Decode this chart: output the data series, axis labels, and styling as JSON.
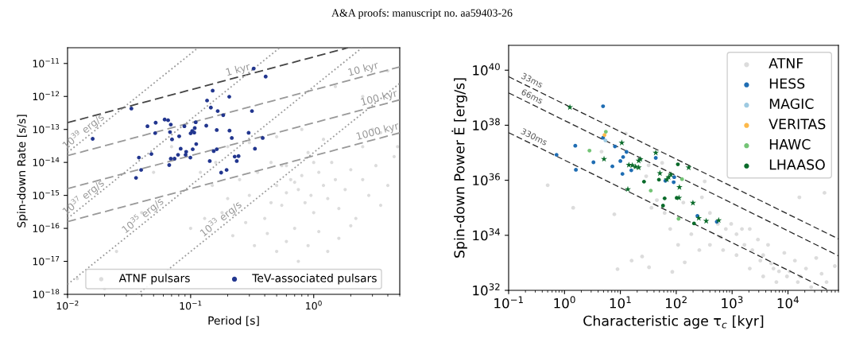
{
  "chart_data": [
    {
      "type": "scatter",
      "xlabel": "Period [s]",
      "ylabel": "Spin-down Rate [s/s]",
      "log": "xy",
      "legend": "bottom",
      "xlim": [
        0.01,
        5
      ],
      "ylim": [
        1e-18,
        3e-11
      ],
      "xticks": [
        {
          "value": 0.01,
          "label": "10$^{−2}$"
        },
        {
          "value": 0.1,
          "label": "10$^{−1}$"
        },
        {
          "value": 1,
          "label": "10$^{0}$"
        }
      ],
      "yticks": [
        {
          "value": 1e-18,
          "label": "10$^{−18}$"
        },
        {
          "value": 1e-17,
          "label": "10$^{−17}$"
        },
        {
          "value": 1e-16,
          "label": "10$^{−16}$"
        },
        {
          "value": 1e-15,
          "label": "10$^{−15}$"
        },
        {
          "value": 1e-14,
          "label": "10$^{−14}$"
        },
        {
          "value": 1e-13,
          "label": "10$^{−13}$"
        },
        {
          "value": 1e-12,
          "label": "10$^{−12}$"
        },
        {
          "value": 1e-11,
          "label": "10$^{−11}$"
        }
      ],
      "annotations": [
        "A&A proofs: manuscript no. aa59403-26",
        {
          "text": "1 kyr",
          "x": 0.25,
          "y": 4e-12
        },
        {
          "text": "10 kyr",
          "x": 2.6,
          "y": 4.2e-12
        },
        {
          "text": "100 kyr",
          "x": 3.5,
          "y": 5.6e-13
        },
        {
          "text": "1000 kyr",
          "x": 3.4,
          "y": 5.4e-14
        },
        {
          "text": "10$^{39}$ erg/s",
          "x": 0.0145,
          "y": 6.1e-14
        },
        {
          "text": "10$^{37}$ erg/s",
          "x": 0.0145,
          "y": 6.1e-16
        },
        {
          "text": "10$^{35}$ erg/s",
          "x": 0.044,
          "y": 1.7e-16
        },
        {
          "text": "10$^{33}$ erg/s",
          "x": 0.19,
          "y": 1.35e-16
        }
      ],
      "series": [
        {
          "type": "line",
          "color": "#444444",
          "line_style": "dashed",
          "x": [
            0.01,
            1.9
          ],
          "values": [
            1.6e-13,
            3e-11
          ]
        },
        {
          "type": "line",
          "color": "#999999",
          "line_style": "dashed",
          "x": [
            0.01,
            5
          ],
          "values": [
            1.6e-14,
            7.9e-12
          ]
        },
        {
          "type": "line",
          "color": "#999999",
          "line_style": "dashed",
          "x": [
            0.01,
            5
          ],
          "values": [
            1.6e-15,
            7.9e-13
          ]
        },
        {
          "type": "line",
          "color": "#999999",
          "line_style": "dashed",
          "x": [
            0.01,
            5
          ],
          "values": [
            1.6e-16,
            7.9e-14
          ]
        },
        {
          "type": "line",
          "color": "#999999",
          "line_style": "dotted",
          "x": [
            0.01,
            0.115
          ],
          "values": [
            2e-14,
            3e-11
          ]
        },
        {
          "type": "line",
          "color": "#999999",
          "line_style": "dotted",
          "x": [
            0.01,
            0.53
          ],
          "values": [
            2e-16,
            3e-11
          ]
        },
        {
          "type": "line",
          "color": "#999999",
          "line_style": "dotted",
          "x": [
            0.01,
            2.47
          ],
          "values": [
            2e-18,
            3e-11
          ]
        },
        {
          "type": "line",
          "color": "#999999",
          "line_style": "dotted",
          "x": [
            0.037,
            5
          ],
          "values": [
            1e-18,
            2.5e-12
          ]
        },
        {
          "name": "ATNF pulsars",
          "color": "#c0c0c0",
          "marker": "circle",
          "x": [
            0.25,
            0.3,
            0.35,
            0.4,
            0.45,
            0.5,
            0.55,
            0.6,
            0.65,
            0.7,
            0.75,
            0.8,
            0.85,
            0.9,
            0.95,
            1.0,
            1.1,
            1.2,
            1.3,
            1.4,
            1.5,
            1.6,
            1.8,
            2.0,
            2.2,
            2.5,
            2.8,
            3.2,
            3.5,
            4.0,
            4.5,
            0.2,
            0.18,
            0.22,
            0.28,
            0.33,
            0.42,
            0.5,
            0.6,
            0.75,
            0.9,
            1.1,
            1.3,
            1.6,
            2.0,
            0.15,
            0.12,
            0.16,
            0.2,
            0.3,
            0.5,
            0.8,
            1.2,
            2.5,
            3.5,
            4.8,
            0.07,
            0.05,
            0.04,
            0.025,
            0.012,
            0.02,
            0.1,
            0.13,
            2.5,
            1.5,
            4.0,
            3.0,
            0.6,
            0.45,
            0.55,
            0.7,
            1.0
          ],
          "values": [
            3e-15,
            1e-15,
            5e-15,
            2e-16,
            1e-14,
            2e-15,
            5e-16,
            8e-15,
            3e-15,
            1e-16,
            1.5e-15,
            4e-15,
            6e-16,
            2e-14,
            1e-15,
            3e-16,
            5e-15,
            2e-15,
            8e-16,
            1e-14,
            3e-15,
            4e-16,
            1.5e-15,
            6e-15,
            2e-16,
            3e-15,
            1e-15,
            8e-15,
            5e-16,
            2e-15,
            1.5e-14,
            8e-16,
            3e-16,
            6e-17,
            1.5e-16,
            3e-17,
            7e-17,
            2e-17,
            4e-17,
            1e-17,
            3e-17,
            8e-17,
            2e-17,
            5e-17,
            1.2e-16,
            2e-15,
            5e-15,
            1e-14,
            3e-14,
            4e-14,
            6e-14,
            1e-13,
            5e-14,
            3e-14,
            8e-14,
            3e-14,
            3e-14,
            5e-15,
            3e-16,
            2e-17,
            3e-18,
            1.5e-18,
            1e-16,
            2e-16,
            1e-12,
            2e-12,
            6e-12,
            1e-13,
            1.2e-15,
            6e-16,
            8e-15,
            2.5e-15,
            1e-14
          ]
        },
        {
          "name": "TeV-associated pulsars",
          "color": "#22368f",
          "marker": "circle",
          "x": [
            0.016,
            0.033,
            0.325,
            0.407,
            0.151,
            0.206,
            0.136,
            0.146,
            0.166,
            0.184,
            0.315,
            0.0615,
            0.0656,
            0.052,
            0.0446,
            0.069,
            0.0515,
            0.068,
            0.0706,
            0.0807,
            0.089,
            0.11,
            0.108,
            0.103,
            0.1,
            0.107,
            0.134,
            0.163,
            0.207,
            0.296,
            0.216,
            0.385,
            0.111,
            0.083,
            0.104,
            0.092,
            0.091,
            0.079,
            0.069,
            0.074,
            0.0995,
            0.048,
            0.038,
            0.0396,
            0.036,
            0.067,
            0.143,
            0.154,
            0.163,
            0.177,
            0.196,
            0.228,
            0.245,
            0.237,
            0.333
          ],
          "values": [
            5.2e-14,
            4.3e-13,
            7e-12,
            4e-12,
            1.5e-12,
            9.8e-13,
            7.5e-13,
            4.6e-13,
            3.6e-13,
            2.7e-13,
            3.6e-13,
            2e-13,
            1.9e-13,
            1.6e-13,
            1.25e-13,
            1.4e-13,
            7.7e-14,
            8.3e-14,
            5e-14,
            6.2e-14,
            1.25e-13,
            1.65e-13,
            1.1e-13,
            9e-14,
            7.6e-14,
            8e-14,
            1.3e-13,
            9.6e-14,
            9.2e-14,
            7.9e-14,
            5.5e-14,
            5.5e-14,
            3.6e-14,
            2.6e-14,
            2.5e-14,
            2.1e-14,
            1.7e-14,
            1.7e-14,
            1.3e-14,
            1.3e-14,
            1.4e-14,
            1.8e-14,
            1.4e-14,
            5.9e-15,
            3.4e-15,
            8.3e-15,
            1.1e-14,
            2.2e-14,
            2.5e-14,
            4.9e-15,
            5.9e-15,
            1.5e-14,
            1.55e-14,
            1.1e-14,
            2.6e-14
          ]
        }
      ]
    },
    {
      "type": "scatter",
      "xlabel": "Characteristic age τ$_{c}$ [kyr]",
      "ylabel": "Spin-down Power Ė [erg/s]",
      "log": "xy",
      "legend": "top right",
      "xlim": [
        0.1,
        80000
      ],
      "ylim": [
        1e+32,
        8e+40
      ],
      "xticks": [
        {
          "value": 0.1,
          "label": "10$^{−1}$"
        },
        {
          "value": 1,
          "label": "10$^{0}$"
        },
        {
          "value": 10,
          "label": "10$^{1}$"
        },
        {
          "value": 100,
          "label": "10$^{2}$"
        },
        {
          "value": 1000,
          "label": "10$^{3}$"
        },
        {
          "value": 10000,
          "label": "10$^{4}$"
        }
      ],
      "yticks": [
        {
          "value": 1e+32,
          "label": "10$^{32}$"
        },
        {
          "value": 1e+34,
          "label": "10$^{34}$"
        },
        {
          "value": 1e+36,
          "label": "10$^{36}$"
        },
        {
          "value": 1e+38,
          "label": "10$^{38}$"
        },
        {
          "value": 1e+40,
          "label": "10$^{40}$"
        }
      ],
      "annotations": [
        {
          "text": "33ms",
          "x": 0.23,
          "y": 2.5e+39
        },
        {
          "text": "66ms",
          "x": 0.23,
          "y": 6.5e+38
        },
        {
          "text": "330ms",
          "x": 0.25,
          "y": 2.2e+37
        }
      ],
      "series": [
        {
          "type": "line",
          "color": "#222222",
          "line_style": "dashed",
          "x": [
            0.1,
            80000
          ],
          "values": [
            5.8e+39,
            7.4e+33
          ]
        },
        {
          "type": "line",
          "color": "#222222",
          "line_style": "dashed",
          "x": [
            0.1,
            80000
          ],
          "values": [
            1.5e+39,
            1.8e+33
          ]
        },
        {
          "type": "line",
          "color": "#222222",
          "line_style": "dashed",
          "x": [
            0.1,
            54000
          ],
          "values": [
            5.4e+37,
            1e+32
          ]
        },
        {
          "name": "ATNF",
          "color": "#c0c0c0",
          "marker": "circle",
          "x": [
            0.5,
            1.43,
            12.5,
            4.6,
            7.8,
            8.9,
            15.9,
            24.5,
            32.6,
            85,
            142,
            16000,
            45000,
            32,
            29,
            45,
            36,
            62,
            134,
            288,
            323,
            401,
            556,
            772,
            1200,
            1660,
            2300,
            3600,
            5000,
            6900,
            9600,
            15000,
            26000,
            49000,
            401,
            259,
            690,
            1200,
            2070,
            3600,
            6200,
            962,
            1500,
            2900,
            4400,
            8600,
            13300,
            21000,
            40000,
            69000,
            2070,
            621,
            186,
            108,
            78,
            5500,
            3200,
            10700,
            16600,
            32000,
            56
          ],
          "values": [
            6.6e+35,
            1e+35,
            5e+37,
            1.1e+37,
            5.8e+34,
            5.9e+32,
            1.2e+33,
            1.7e+33,
            6.9e+32,
            4.7e+32,
            1.04e+33,
            2.4e+35,
            3.5e+35,
            3.5e+36,
            1.4e+36,
            1.9e+35,
            1e+35,
            6.5e+34,
            1.55e+35,
            2.4e+35,
            9.1e+35,
            6.5e+34,
            2.6e+34,
            1.7e+34,
            1.1e+34,
            4.5e+33,
            2.9e+33,
            1.9e+33,
            9.6e+32,
            4.9e+32,
            3.2e+32,
            2e+32,
            1.3e+32,
            2e+32,
            4.5e+33,
            2.9e+33,
            2.9e+33,
            1.9e+33,
            6.2e+32,
            3.2e+32,
            2e+32,
            2.6e+34,
            1.7e+34,
            7e+33,
            4.5e+33,
            2.3e+33,
            1.2e+33,
            6.2e+32,
            4e+32,
            7.6e+32,
            1.7e+34,
            8.7e+33,
            1.1e+34,
            4.5e+33,
            1.7e+34,
            6.2e+32,
            1.2e+33,
            4.9e+32,
            3.2e+32,
            1.5e+33,
            4.3e+36
          ]
        },
        {
          "name": "HESS",
          "color": "#1f6db3",
          "marker": "circle",
          "x": [
            4.9,
            0.72,
            1.56,
            1.6,
            3.3,
            4.9,
            7.2,
            8.0,
            10,
            11.2,
            10.9,
            12.9,
            15.7,
            43,
            64,
            90,
            92,
            239,
            532
          ],
          "values": [
            4.9e+38,
            8.4e+36,
            1.8e+37,
            2.4e+36,
            4.5e+36,
            3.5e+37,
            3.2e+36,
            1.7e+37,
            5e+36,
            7e+36,
            1.7e+36,
            1.07e+37,
            2.3e+36,
            6.5e+36,
            9.6e+35,
            8.5e+35,
            1.3e+36,
            5.1e+34,
            3.1e+34
          ]
        },
        {
          "name": "MAGIC",
          "color": "#9ecae1",
          "marker": "circle",
          "x": [
            5.4
          ],
          "values": [
            2.8e+37
          ]
        },
        {
          "name": "VERITAS",
          "color": "#fdb94a",
          "marker": "circle",
          "x": [
            5.2
          ],
          "values": [
            4.4e+37
          ]
        },
        {
          "name": "HAWC",
          "color": "#74c476",
          "marker": "circle",
          "x": [
            5.5,
            2.8,
            35,
            110,
            127
          ],
          "values": [
            5.8e+37,
            1.2e+37,
            4.2e+35,
            4e+34,
            1.1e+36
          ]
        },
        {
          "name": "LHAASO",
          "color": "#0a6b2a",
          "marker": "circle",
          "x": [
            26.5,
            49,
            107,
            62,
            58,
            102,
            208
          ],
          "values": [
            8.9e+35,
            1.05e+36,
            3.8e+36,
            2.2e+35,
            1.2e+35,
            2.3e+35,
            2.7e+34
          ]
        },
        {
          "color": "#0a6b2a",
          "marker": "star",
          "x": [
            1.25,
            10.6,
            5.1,
            43,
            14.2,
            16.4,
            18.7,
            21.3,
            21.3,
            22.8,
            13.6,
            51,
            80,
            73,
            68,
            167,
            114,
            112,
            199,
            344,
            253,
            575
          ],
          "values": [
            4.5e+38,
            2.3e+37,
            5.9e+36,
            1e+37,
            3.6e+36,
            3.5e+36,
            3.1e+36,
            2.9e+36,
            5.1e+36,
            5.8e+36,
            4.7e+35,
            1.8e+36,
            1.6e+36,
            1.3e+36,
            1.07e+36,
            2.9e+36,
            5.6e+35,
            2.3e+35,
            1.5e+35,
            3.3e+34,
            4.2e+34,
            3.5e+34
          ]
        }
      ]
    }
  ]
}
